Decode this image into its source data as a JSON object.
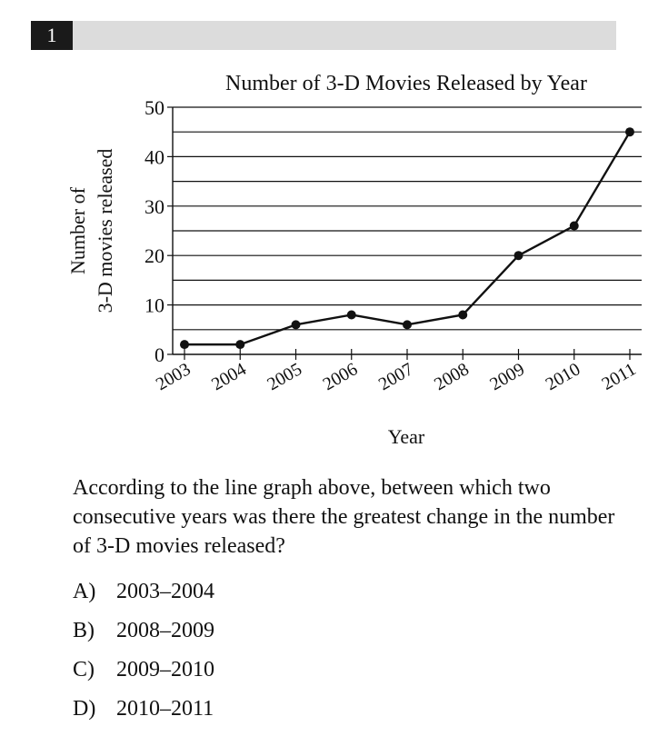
{
  "question": {
    "number": "1",
    "prompt": "According to the line graph above, between which two consecutive years was there the greatest change in the number of 3-D movies released?",
    "choices": [
      {
        "letter": "A)",
        "text": "2003–2004"
      },
      {
        "letter": "B)",
        "text": "2008–2009"
      },
      {
        "letter": "C)",
        "text": "2009–2010"
      },
      {
        "letter": "D)",
        "text": "2010–2011"
      }
    ]
  },
  "chart_data": {
    "type": "line",
    "title": "Number of 3-D Movies Released by Year",
    "xlabel": "Year",
    "ylabel_lines": [
      "Number of",
      "3-D movies released"
    ],
    "x": [
      "2003",
      "2004",
      "2005",
      "2006",
      "2007",
      "2008",
      "2009",
      "2010",
      "2011"
    ],
    "values": [
      2,
      2,
      6,
      8,
      6,
      8,
      20,
      26,
      45
    ],
    "ylim": [
      0,
      50
    ],
    "yticks": [
      0,
      10,
      20,
      30,
      40,
      50
    ],
    "grid_step": 5,
    "grid": true,
    "line_color": "#111111"
  }
}
